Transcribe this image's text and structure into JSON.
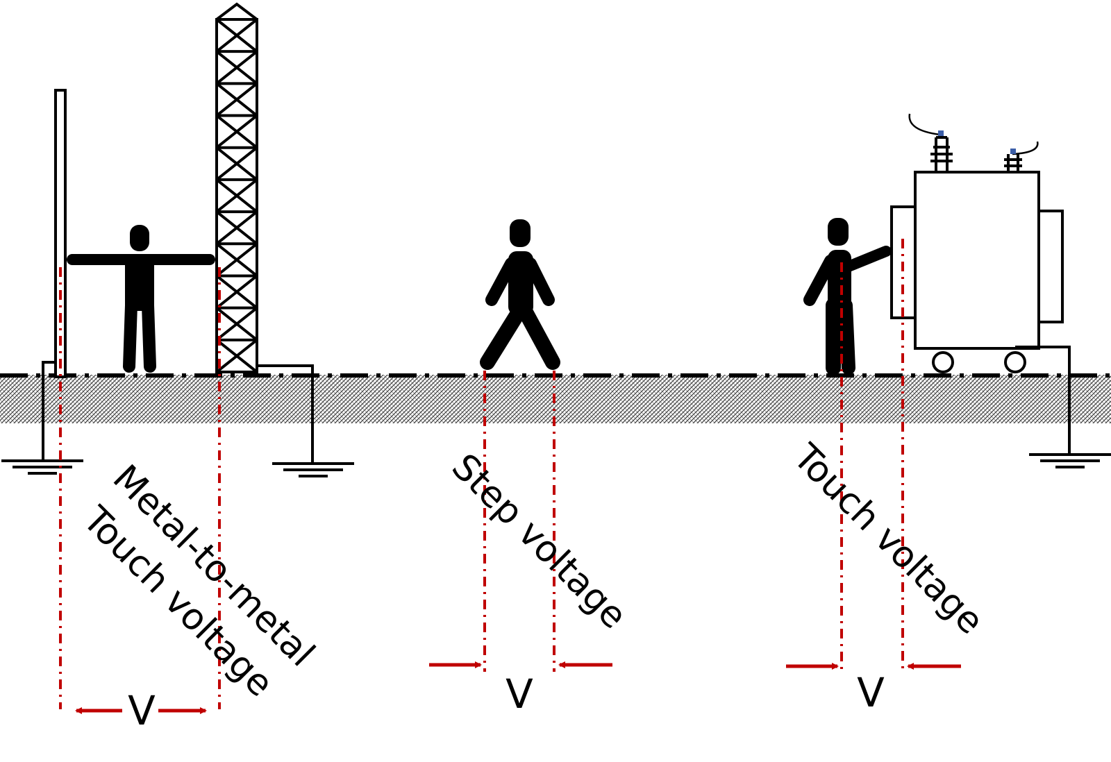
{
  "colors": {
    "measure_red": "#c00000",
    "outline": "#000000",
    "soil": "#cfcfcf",
    "insulator_tip": "#3b5ea8"
  },
  "labels": {
    "metal_to_metal_line1": "Metal-to-metal",
    "metal_to_metal_line2": "Touch voltage",
    "step": "Step voltage",
    "touch": "Touch voltage"
  },
  "voltage_symbol": "V",
  "icons": [
    "ground-symbol-icon",
    "person-arms-out-icon",
    "person-walking-icon",
    "person-touching-icon",
    "lattice-tower-icon",
    "transformer-icon"
  ]
}
